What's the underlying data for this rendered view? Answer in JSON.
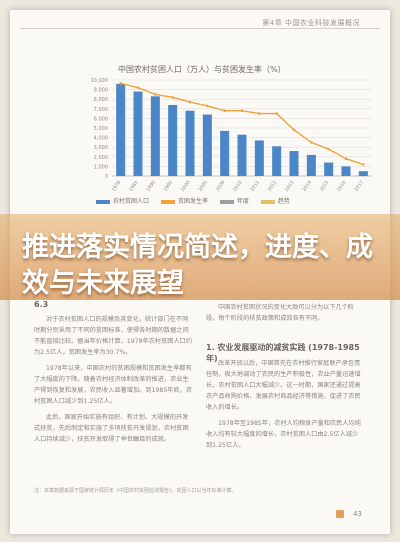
{
  "header": {
    "running_title": "第4章 中国农业科技发展概况"
  },
  "chart": {
    "title": "中国农村贫困人口（万人）与贫困发生率（%）",
    "legend": [
      "农村贫困人口",
      "贫困发生率",
      "年度",
      "趋势"
    ]
  },
  "chart_data": {
    "type": "bar",
    "categories": [
      "1978",
      "1985",
      "1990",
      "1995",
      "2000",
      "2005",
      "2008",
      "2010",
      "2011",
      "2012",
      "2013",
      "2014",
      "2015",
      "2016",
      "2017"
    ],
    "y_ticks": [
      "10,000",
      "9,000",
      "8,000",
      "7,000",
      "6,000",
      "5,000",
      "4,000",
      "3,000",
      "2,000",
      "1,000",
      "0"
    ],
    "series": [
      {
        "values": [
          9600,
          8800,
          8300,
          7400,
          6800,
          6400,
          4700,
          4300,
          3700,
          3100,
          2600,
          2200,
          1400,
          1000,
          500
        ]
      },
      {
        "values": [
          9650,
          9200,
          8500,
          8200,
          7700,
          7300,
          6800,
          6800,
          6500,
          6500,
          4800,
          3500,
          2800,
          1800,
          1200
        ]
      }
    ],
    "ylim": [
      0,
      10000
    ]
  },
  "banner": {
    "title": "推进落实情况简述，进度、成效与未来展望"
  },
  "left_column": {
    "heading": "6.3",
    "paragraphs": [
      "对于农村贫困人口的规模及其变化，统计部门在不同时期分别采用了不同的贫困标准，使得各时期的数据之间不能直接比较。据当年价格计算，1978年农村贫困人口约为2.5亿人，贫困发生率为30.7%。",
      "1978年以来，中国农村的贫困规模和贫困发生率都有了大幅度的下降。随着农村经济体制改革的推进，农业生产得到恢复和发展，农民收入显著增加。到1985年底，农村贫困人口减少到1.25亿人。",
      "此后，国家开始实施有组织、有计划、大规模的开发式扶贫，先后制定和实施了多项扶贫开发规划，农村贫困人口持续减少，扶贫开发取得了举世瞩目的成就。"
    ]
  },
  "right_column": {
    "intro": "中国农村贫困状况的变化大致可以分为以下几个阶段，每个阶段的扶贫政策和成效各有不同。",
    "section_heading": "1. 农业发展驱动的减贫实践 (1978-1985年)",
    "paragraphs": [
      "改革开放以后，中国首先在农村推行家庭联产承包责任制，极大地调动了农民的生产积极性，农业产量迅速增长，农村贫困人口大幅减少。这一时期，国家还通过提高农产品收购价格、发展农村商品经济等措施，促进了农民收入的增长。",
      "1978年至1985年，农村人均粮食产量和农民人均纯收入均有较大幅度的增长，农村贫困人口由2.5亿人减少到1.25亿人。"
    ]
  },
  "footnote": "注：本章数据来源于国家统计局历年《中国农村贫困监测报告》，贫困人口以当年标准计算。",
  "page_number": "43"
}
